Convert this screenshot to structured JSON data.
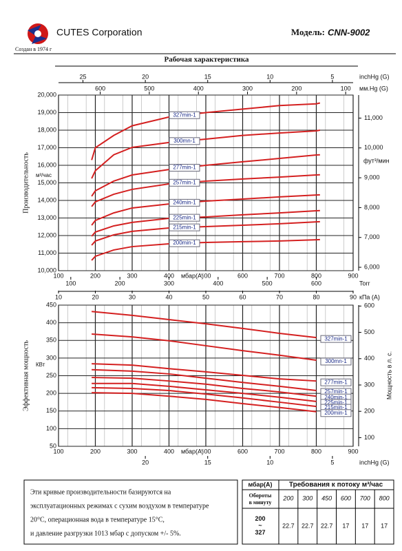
{
  "header": {
    "company": "CUTES Corporation",
    "founded": "Создан в 1974 г",
    "model_label": "Модель:",
    "model": "CNN-9002"
  },
  "section_title": "Рабочая характеристика",
  "chart_data": [
    {
      "type": "line",
      "x_label": "мбар(A)",
      "y_label": "Производительность",
      "y_unit": "м³/час",
      "y2_label": "фут³/мин",
      "xlim": [
        100,
        900
      ],
      "xticks": [
        100,
        200,
        300,
        400,
        500,
        600,
        700,
        800,
        900
      ],
      "ylim": [
        10000,
        20000
      ],
      "yticks": [
        {
          "value": 10000,
          "label": "10,000"
        },
        {
          "value": 11000,
          "label": "11,000"
        },
        {
          "value": 12000,
          "label": "12,000"
        },
        {
          "value": 13000,
          "label": "13,000"
        },
        {
          "value": 14000,
          "label": "14,000"
        },
        {
          "value": 15000,
          "label": "15,000"
        },
        {
          "value": 16000,
          "label": "16,000"
        },
        {
          "value": 17000,
          "label": "17,000"
        },
        {
          "value": 18000,
          "label": "18,000"
        },
        {
          "value": 19000,
          "label": "19,000"
        },
        {
          "value": 20000,
          "label": "20,000"
        }
      ],
      "y2lim": [
        5886,
        11772
      ],
      "y2ticks": [
        {
          "value": 6000,
          "label": "6,000"
        },
        {
          "value": 7000,
          "label": "7,000"
        },
        {
          "value": 8000,
          "label": "8,000"
        },
        {
          "value": 9000,
          "label": "9,000"
        },
        {
          "value": 10000,
          "label": "10,000"
        },
        {
          "value": 11000,
          "label": "11,000"
        }
      ],
      "top_axes": [
        {
          "label": "inchHg (G)",
          "lim": [
            26.96,
            3.34
          ],
          "ticks": [
            25,
            20,
            15,
            10,
            5
          ]
        },
        {
          "label": "мм.Hg (G)",
          "lim": [
            685,
            84.8
          ],
          "ticks": [
            600,
            500,
            400,
            300,
            200,
            100
          ]
        }
      ],
      "bottom_axes": [
        {
          "label": "Torr",
          "lim": [
            75,
            675
          ],
          "ticks": [
            100,
            200,
            300,
            400,
            500,
            600
          ]
        },
        {
          "label": "кПа (A)",
          "lim": [
            10,
            90
          ],
          "ticks": [
            10,
            20,
            30,
            40,
            50,
            60,
            70,
            80,
            90
          ]
        }
      ],
      "x": [
        190,
        200,
        250,
        300,
        400,
        500,
        600,
        700,
        800,
        810
      ],
      "series": [
        {
          "name": "327min-1",
          "color": "#d42020",
          "values": [
            16300,
            17000,
            17700,
            18250,
            18750,
            19000,
            19200,
            19400,
            19500,
            19550
          ]
        },
        {
          "name": "300mn-1",
          "color": "#d42020",
          "values": [
            15250,
            15690,
            16600,
            17020,
            17300,
            17490,
            17700,
            17840,
            17960,
            18000
          ]
        },
        {
          "name": "277min-1",
          "color": "#d42020",
          "values": [
            14240,
            14550,
            15100,
            15450,
            15760,
            16000,
            16200,
            16390,
            16590,
            16600
          ]
        },
        {
          "name": "257min-1",
          "color": "#d42020",
          "values": [
            13650,
            13920,
            14350,
            14630,
            14940,
            15100,
            15220,
            15330,
            15450,
            15460
          ]
        },
        {
          "name": "240min-1",
          "color": "#d42020",
          "values": [
            12590,
            12860,
            13290,
            13570,
            13800,
            13960,
            14080,
            14200,
            14310,
            14320
          ]
        },
        {
          "name": "225min-1",
          "color": "#d42020",
          "values": [
            11960,
            12200,
            12550,
            12750,
            12980,
            13060,
            13180,
            13290,
            13410,
            13420
          ]
        },
        {
          "name": "215min-1",
          "color": "#d42020",
          "values": [
            11450,
            11690,
            12040,
            12240,
            12430,
            12510,
            12590,
            12670,
            12780,
            12790
          ]
        },
        {
          "name": "200min-1",
          "color": "#d42020",
          "values": [
            10590,
            10820,
            11180,
            11370,
            11530,
            11610,
            11650,
            11690,
            11760,
            11770
          ]
        }
      ]
    },
    {
      "type": "line",
      "x_label": "мбар(A)",
      "y_label": "Эффективная мощность",
      "y_unit": "КВт",
      "y2_label": "Мощность в л. с.",
      "xlim": [
        100,
        900
      ],
      "xticks": [
        100,
        200,
        300,
        400,
        500,
        600,
        700,
        800,
        900
      ],
      "ylim": [
        50,
        450
      ],
      "yticks": [
        50,
        100,
        150,
        200,
        250,
        300,
        350,
        400,
        450
      ],
      "y2lim": [
        67.05,
        603.5
      ],
      "y2ticks": [
        100,
        200,
        300,
        400,
        500,
        600
      ],
      "top_axes": [],
      "bottom_axes": [
        {
          "label": "inchHg (G)",
          "lim": [
            26.96,
            3.34
          ],
          "ticks": [
            20,
            15,
            10,
            5
          ]
        }
      ],
      "x": [
        190,
        300,
        400,
        500,
        600,
        700,
        800
      ],
      "series": [
        {
          "name": "327min-1",
          "color": "#d42020",
          "values": [
            432,
            421,
            409,
            397,
            384,
            370,
            358
          ]
        },
        {
          "name": "300mn-1",
          "color": "#d42020",
          "values": [
            368,
            360,
            349,
            335,
            321,
            308,
            294
          ]
        },
        {
          "name": "277min-1",
          "color": "#d42020",
          "values": [
            284,
            280,
            270,
            261,
            251,
            241,
            235
          ]
        },
        {
          "name": "257min-1",
          "color": "#d42020",
          "values": [
            267,
            263,
            255,
            243,
            231,
            220,
            208
          ]
        },
        {
          "name": "240min-1",
          "color": "#d42020",
          "values": [
            245,
            243,
            235,
            226,
            214,
            204,
            192
          ]
        },
        {
          "name": "225min-1",
          "color": "#d42020",
          "values": [
            228,
            228,
            220,
            210,
            200,
            189,
            177
          ]
        },
        {
          "name": "215min-1",
          "color": "#d42020",
          "values": [
            216,
            214,
            208,
            198,
            187,
            175,
            163
          ]
        },
        {
          "name": "200min-1",
          "color": "#d42020",
          "values": [
            202,
            200,
            192,
            183,
            171,
            160,
            148
          ]
        }
      ]
    }
  ],
  "note": {
    "lines": [
      "Эти кривые производительности базируются на",
      "эксплуатационных режимах с сухим воздухом в температуре",
      "20°C, операционная вода в температуре 15°C,",
      "и давление разгрузки 1013 мбар с допуском +/- 5%."
    ]
  },
  "table": {
    "corner": "мбар(A)",
    "title": "Требования к потоку м³/час",
    "row_label": "Обороты в минуту",
    "pressures": [
      200,
      300,
      450,
      600,
      700,
      800
    ],
    "rpm": "200 ~ 327",
    "values": [
      22.7,
      22.7,
      22.7,
      17,
      17,
      17
    ]
  }
}
